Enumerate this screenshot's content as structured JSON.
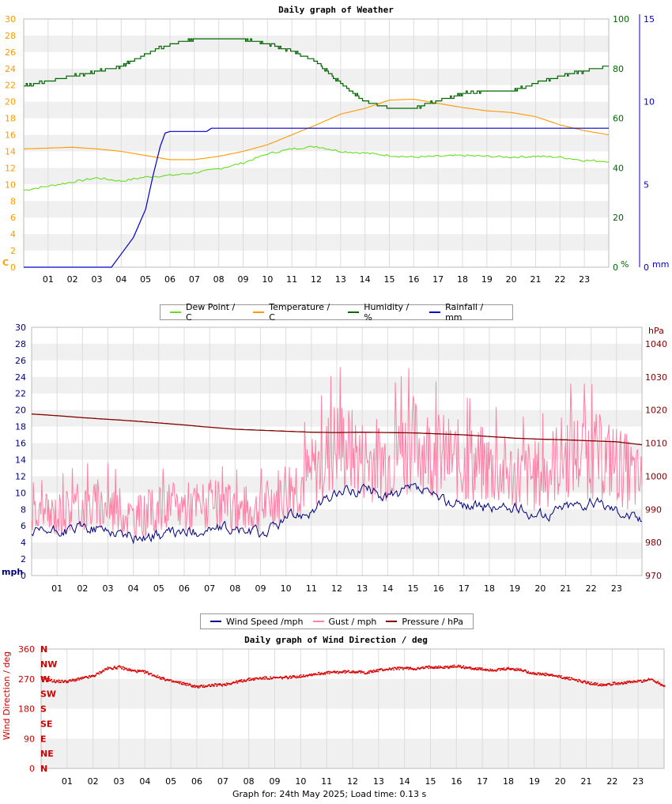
{
  "chart_data": [
    {
      "type": "line",
      "title": "Daily graph of Weather",
      "x_ticks": [
        "01",
        "02",
        "03",
        "04",
        "05",
        "06",
        "07",
        "08",
        "09",
        "10",
        "11",
        "12",
        "13",
        "14",
        "15",
        "16",
        "17",
        "18",
        "19",
        "20",
        "21",
        "22",
        "23"
      ],
      "axes": {
        "temp": {
          "label": "C",
          "ylim": [
            0,
            30
          ],
          "ticks": [
            0,
            2,
            4,
            6,
            8,
            10,
            12,
            14,
            16,
            18,
            20,
            22,
            24,
            26,
            28,
            30
          ],
          "color": "#ff9900"
        },
        "humidity": {
          "label": "%",
          "ylim": [
            0,
            100
          ],
          "ticks": [
            0,
            20,
            40,
            60,
            80,
            100
          ],
          "color": "#006600"
        },
        "rain": {
          "label": "mm",
          "ylim": [
            0,
            15
          ],
          "ticks": [
            0,
            5,
            10,
            15
          ],
          "color": "#0000cc"
        }
      },
      "series": [
        {
          "name": "Dew Point / C",
          "axis": "temp",
          "color": "#66dd22",
          "x": [
            0,
            1,
            2,
            3,
            4,
            5,
            6,
            7,
            8,
            9,
            10,
            11,
            12,
            13,
            14,
            15,
            16,
            17,
            18,
            19,
            20,
            21,
            22,
            23,
            24
          ],
          "values": [
            9.3,
            9.8,
            10.3,
            10.8,
            10.4,
            10.9,
            11.1,
            11.4,
            11.9,
            12.6,
            13.7,
            14.3,
            14.6,
            14.0,
            13.8,
            13.5,
            13.3,
            13.4,
            13.5,
            13.4,
            13.3,
            13.4,
            13.3,
            12.9,
            12.8
          ]
        },
        {
          "name": "Temperature / C",
          "axis": "temp",
          "color": "#ff9900",
          "x": [
            0,
            1,
            2,
            3,
            4,
            5,
            6,
            7,
            8,
            9,
            10,
            11,
            12,
            13,
            14,
            15,
            16,
            17,
            18,
            19,
            20,
            21,
            22,
            23,
            24
          ],
          "values": [
            14.3,
            14.4,
            14.5,
            14.3,
            14.0,
            13.5,
            13.0,
            13.0,
            13.4,
            14.0,
            14.8,
            16.0,
            17.2,
            18.5,
            19.2,
            20.2,
            20.3,
            19.8,
            19.3,
            18.9,
            18.7,
            18.2,
            17.2,
            16.5,
            16.0
          ]
        },
        {
          "name": "Humidity / %",
          "axis": "humidity",
          "color": "#006600",
          "x": [
            0,
            1,
            2,
            3,
            4,
            5,
            6,
            7,
            8,
            9,
            10,
            11,
            12,
            13,
            14,
            15,
            16,
            17,
            18,
            19,
            20,
            21,
            22,
            23,
            24
          ],
          "values": [
            73,
            75,
            77,
            79,
            81,
            86,
            90,
            92,
            92,
            92,
            90,
            87,
            83,
            74,
            67,
            64,
            64,
            67,
            70,
            71,
            71,
            74,
            77,
            79,
            81
          ]
        },
        {
          "name": "Rainfall / mm",
          "axis": "rain",
          "color": "#0000cc",
          "x": [
            0,
            1,
            2,
            3,
            3.6,
            4.0,
            4.5,
            5.0,
            5.3,
            5.6,
            5.8,
            6.0,
            7.5,
            7.7,
            24
          ],
          "values": [
            0,
            0,
            0,
            0,
            0,
            0.8,
            1.8,
            3.5,
            5.5,
            7.3,
            8.1,
            8.2,
            8.2,
            8.4,
            8.4
          ]
        }
      ],
      "legend": "bottom"
    },
    {
      "type": "line",
      "title": "",
      "x_ticks": [
        "01",
        "02",
        "03",
        "04",
        "05",
        "06",
        "07",
        "08",
        "09",
        "10",
        "11",
        "12",
        "13",
        "14",
        "15",
        "16",
        "17",
        "18",
        "19",
        "20",
        "21",
        "22",
        "23"
      ],
      "axes": {
        "speed": {
          "label": "mph",
          "ylim": [
            0,
            30
          ],
          "ticks": [
            0,
            2,
            4,
            6,
            8,
            10,
            12,
            14,
            16,
            18,
            20,
            22,
            24,
            26,
            28,
            30
          ],
          "color": "#000080"
        },
        "pressure": {
          "label": "hPa",
          "ylim": [
            970,
            1045
          ],
          "ticks": [
            970,
            980,
            990,
            1000,
            1010,
            1020,
            1030,
            1040
          ],
          "color": "#800000"
        }
      },
      "series": [
        {
          "name": "Wind Speed /mph",
          "axis": "speed",
          "color": "#000080",
          "x": [
            0,
            1,
            2,
            3,
            4,
            5,
            6,
            7,
            8,
            9,
            10,
            11,
            12,
            13,
            14,
            15,
            16,
            17,
            18,
            19,
            20,
            21,
            22,
            23,
            24
          ],
          "values": [
            5.0,
            5.3,
            5.8,
            5.5,
            4.6,
            4.9,
            5.2,
            5.6,
            5.5,
            5.0,
            7.0,
            8.0,
            10.0,
            10.5,
            9.5,
            10.5,
            9.0,
            8.5,
            8.2,
            8.0,
            7.2,
            8.5,
            8.8,
            8.0,
            6.5
          ]
        },
        {
          "name": "Gust / mph",
          "axis": "speed",
          "color": "#ff7fa5",
          "x": [
            0,
            1,
            2,
            3,
            4,
            5,
            6,
            7,
            8,
            9,
            10,
            11,
            12,
            13,
            14,
            15,
            16,
            17,
            18,
            19,
            20,
            21,
            22,
            23,
            24
          ],
          "values": [
            7.0,
            7.5,
            8.5,
            8.5,
            7.0,
            8.0,
            8.5,
            8.5,
            8.0,
            8.0,
            10.5,
            12.0,
            16.0,
            14.0,
            14.0,
            16.0,
            14.5,
            13.5,
            13.0,
            12.0,
            12.0,
            14.5,
            14.5,
            13.5,
            11.0
          ]
        },
        {
          "name": "Pressure / hPa",
          "axis": "pressure",
          "color": "#800000",
          "x": [
            0,
            1,
            2,
            3,
            4,
            5,
            6,
            7,
            8,
            9,
            10,
            11,
            12,
            13,
            14,
            15,
            16,
            17,
            18,
            19,
            20,
            21,
            22,
            23,
            24
          ],
          "values": [
            1018.8,
            1018.3,
            1017.7,
            1017.2,
            1016.7,
            1016.1,
            1015.5,
            1014.8,
            1014.2,
            1013.9,
            1013.6,
            1013.3,
            1013.2,
            1013.3,
            1013.2,
            1013.1,
            1012.8,
            1012.5,
            1012.0,
            1011.5,
            1011.2,
            1011.0,
            1010.7,
            1010.4,
            1009.5
          ]
        }
      ],
      "legend": "bottom"
    },
    {
      "type": "scatter",
      "title": "Daily graph of Wind Direction / deg",
      "x_ticks": [
        "01",
        "02",
        "03",
        "04",
        "05",
        "06",
        "07",
        "08",
        "09",
        "10",
        "11",
        "12",
        "13",
        "14",
        "15",
        "16",
        "17",
        "18",
        "19",
        "20",
        "21",
        "22",
        "23"
      ],
      "ylabel": "Wind Direction / deg",
      "ylim": [
        0,
        360
      ],
      "y_ticks": [
        0,
        90,
        180,
        270,
        360
      ],
      "compass": [
        "N",
        "NE",
        "E",
        "SE",
        "S",
        "SW",
        "W",
        "NW",
        "N"
      ],
      "series": [
        {
          "name": "Wind Direction / deg",
          "color": "#dd0000",
          "x": [
            0,
            0.5,
            1,
            1.5,
            2,
            2.5,
            3,
            3.5,
            4,
            4.5,
            5,
            5.5,
            6,
            6.5,
            7,
            7.5,
            8,
            8.5,
            9,
            9.5,
            10,
            10.5,
            11,
            11.5,
            12,
            12.5,
            13,
            13.5,
            14,
            14.5,
            15,
            15.5,
            16,
            16.5,
            17,
            17.5,
            18,
            18.5,
            19,
            19.5,
            20,
            20.5,
            21,
            21.5,
            22,
            22.5,
            23,
            23.5,
            24
          ],
          "values": [
            272,
            262,
            262,
            270,
            278,
            300,
            305,
            294,
            290,
            275,
            262,
            255,
            245,
            250,
            252,
            260,
            268,
            272,
            272,
            274,
            278,
            284,
            288,
            290,
            292,
            288,
            296,
            300,
            302,
            300,
            306,
            304,
            308,
            302,
            298,
            296,
            300,
            296,
            285,
            282,
            275,
            268,
            258,
            252,
            255,
            258,
            262,
            268,
            248
          ]
        }
      ]
    }
  ],
  "footer": "Graph for: 24th May 2025; Load time: 0.13 s"
}
